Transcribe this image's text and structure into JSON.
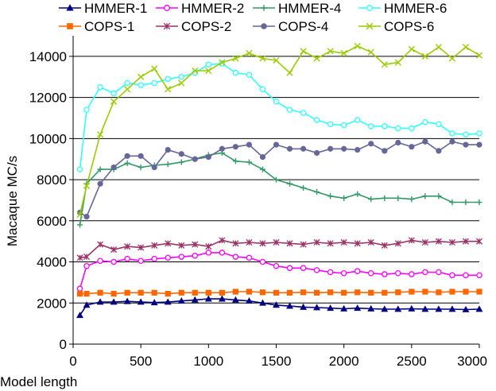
{
  "chart_data": {
    "type": "line",
    "title": "",
    "xlabel": "Model  length",
    "ylabel": "Macaque  MC/s",
    "xlim": [
      0,
      3000
    ],
    "ylim": [
      0,
      15000
    ],
    "xticks": [
      0,
      500,
      1000,
      1500,
      2000,
      2500,
      3000
    ],
    "yticks": [
      0,
      2000,
      4000,
      6000,
      8000,
      10000,
      12000,
      14000
    ],
    "grid": "horizontal",
    "legend_position": "top",
    "series": [
      {
        "name": "HMMER-1",
        "color": "#000080",
        "marker": "triangle",
        "x": [
          50,
          100,
          200,
          300,
          400,
          500,
          600,
          700,
          800,
          900,
          1000,
          1100,
          1200,
          1300,
          1400,
          1500,
          1600,
          1700,
          1800,
          1900,
          2000,
          2100,
          2200,
          2300,
          2400,
          2500,
          2600,
          2700,
          2800,
          2900,
          3000
        ],
        "y": [
          1400,
          1900,
          2050,
          2050,
          2080,
          2050,
          2020,
          2050,
          2100,
          2150,
          2200,
          2200,
          2150,
          2100,
          2000,
          1900,
          1850,
          1800,
          1780,
          1750,
          1720,
          1750,
          1720,
          1700,
          1700,
          1720,
          1700,
          1700,
          1700,
          1680,
          1700
        ]
      },
      {
        "name": "HMMER-2",
        "color": "#ff00ff",
        "marker": "circle-open",
        "x": [
          50,
          100,
          200,
          300,
          400,
          500,
          600,
          700,
          800,
          900,
          1000,
          1100,
          1200,
          1300,
          1400,
          1500,
          1600,
          1700,
          1800,
          1900,
          2000,
          2100,
          2200,
          2300,
          2400,
          2500,
          2600,
          2700,
          2800,
          2900,
          3000
        ],
        "y": [
          2700,
          3800,
          4050,
          4000,
          4150,
          4050,
          4150,
          4200,
          4250,
          4300,
          4450,
          4450,
          4250,
          4200,
          4000,
          3800,
          3700,
          3700,
          3600,
          3500,
          3450,
          3550,
          3450,
          3400,
          3450,
          3400,
          3500,
          3500,
          3350,
          3350,
          3350
        ]
      },
      {
        "name": "HMMER-4",
        "color": "#339966",
        "marker": "plus",
        "x": [
          50,
          100,
          200,
          300,
          400,
          500,
          600,
          700,
          800,
          900,
          1000,
          1100,
          1200,
          1300,
          1400,
          1500,
          1600,
          1700,
          1800,
          1900,
          2000,
          2100,
          2200,
          2300,
          2400,
          2500,
          2600,
          2700,
          2800,
          2900,
          3000
        ],
        "y": [
          5800,
          7800,
          8500,
          8500,
          8800,
          8600,
          8700,
          8750,
          8850,
          9000,
          9200,
          9300,
          8900,
          8850,
          8500,
          8000,
          7800,
          7600,
          7400,
          7200,
          7100,
          7300,
          7050,
          7100,
          7100,
          7050,
          7200,
          7200,
          6900,
          6900,
          6900
        ]
      },
      {
        "name": "HMMER-6",
        "color": "#33ffff",
        "marker": "circle-open",
        "x": [
          50,
          100,
          200,
          300,
          400,
          500,
          600,
          700,
          800,
          900,
          1000,
          1100,
          1200,
          1300,
          1400,
          1500,
          1600,
          1700,
          1800,
          1900,
          2000,
          2100,
          2200,
          2300,
          2400,
          2500,
          2600,
          2700,
          2800,
          2900,
          3000
        ],
        "y": [
          8500,
          11400,
          12500,
          12200,
          12700,
          12600,
          12700,
          12900,
          13000,
          13200,
          13600,
          13650,
          13200,
          13100,
          12400,
          11800,
          11400,
          11250,
          10900,
          10700,
          10650,
          10900,
          10600,
          10600,
          10500,
          10500,
          10800,
          10700,
          10250,
          10200,
          10250
        ]
      },
      {
        "name": "COPS-1",
        "color": "#ff6600",
        "marker": "square",
        "x": [
          50,
          100,
          200,
          300,
          400,
          500,
          600,
          700,
          800,
          900,
          1000,
          1100,
          1200,
          1300,
          1400,
          1500,
          1600,
          1700,
          1800,
          1900,
          2000,
          2100,
          2200,
          2300,
          2400,
          2500,
          2600,
          2700,
          2800,
          2900,
          3000
        ],
        "y": [
          2450,
          2450,
          2500,
          2450,
          2500,
          2500,
          2500,
          2450,
          2500,
          2500,
          2500,
          2500,
          2550,
          2550,
          2520,
          2500,
          2500,
          2520,
          2500,
          2520,
          2500,
          2520,
          2500,
          2500,
          2520,
          2550,
          2550,
          2520,
          2550,
          2550,
          2550
        ]
      },
      {
        "name": "COPS-2",
        "color": "#993366",
        "marker": "star",
        "x": [
          50,
          100,
          200,
          300,
          400,
          500,
          600,
          700,
          800,
          900,
          1000,
          1100,
          1200,
          1300,
          1400,
          1500,
          1600,
          1700,
          1800,
          1900,
          2000,
          2100,
          2200,
          2300,
          2400,
          2500,
          2600,
          2700,
          2800,
          2900,
          3000
        ],
        "y": [
          4200,
          4250,
          4850,
          4600,
          4750,
          4700,
          4800,
          4900,
          4800,
          4850,
          4750,
          5050,
          4900,
          4950,
          4900,
          4950,
          4900,
          4850,
          4950,
          4900,
          4950,
          4900,
          4950,
          4800,
          4900,
          5050,
          4950,
          5000,
          4950,
          5000,
          5000
        ]
      },
      {
        "name": "COPS-4",
        "color": "#666699",
        "marker": "circle-filled",
        "x": [
          50,
          100,
          200,
          300,
          400,
          500,
          600,
          700,
          800,
          900,
          1000,
          1100,
          1200,
          1300,
          1400,
          1500,
          1600,
          1700,
          1800,
          1900,
          2000,
          2100,
          2200,
          2300,
          2400,
          2500,
          2600,
          2700,
          2800,
          2900,
          3000
        ],
        "y": [
          6400,
          6200,
          7800,
          8600,
          9150,
          9150,
          8600,
          9450,
          9250,
          9000,
          9100,
          9500,
          9600,
          9700,
          9100,
          9700,
          9500,
          9500,
          9300,
          9500,
          9500,
          9450,
          9750,
          9400,
          9800,
          9600,
          9850,
          9400,
          9850,
          9700,
          9700
        ]
      },
      {
        "name": "COPS-6",
        "color": "#99cc00",
        "marker": "x",
        "x": [
          50,
          100,
          200,
          300,
          400,
          500,
          600,
          700,
          800,
          900,
          1000,
          1100,
          1200,
          1300,
          1400,
          1500,
          1600,
          1700,
          1800,
          1900,
          2000,
          2100,
          2200,
          2300,
          2400,
          2500,
          2600,
          2700,
          2800,
          2900,
          3000
        ],
        "y": [
          6300,
          7700,
          10200,
          11800,
          12400,
          13000,
          13400,
          12400,
          12700,
          13300,
          13300,
          13700,
          13900,
          14150,
          13900,
          13800,
          13200,
          14250,
          13900,
          14250,
          14150,
          14500,
          14200,
          13600,
          13700,
          14350,
          14000,
          14450,
          13900,
          14450,
          14050
        ]
      }
    ]
  }
}
